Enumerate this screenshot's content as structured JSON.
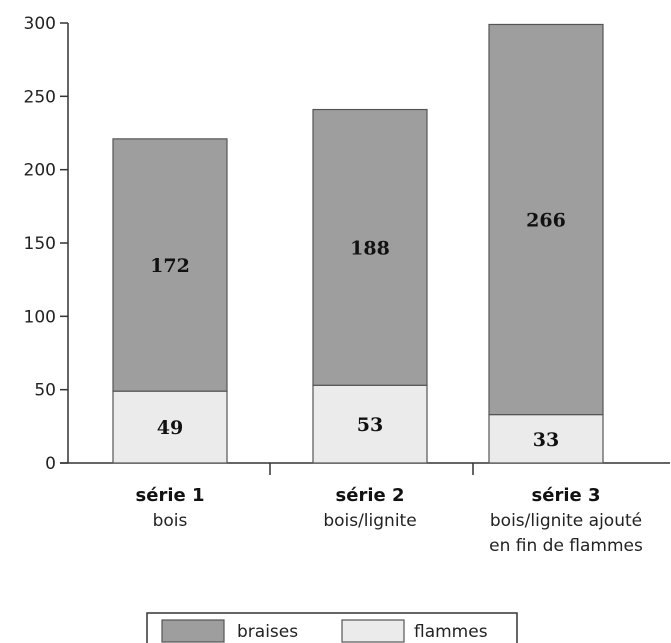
{
  "chart_data": {
    "type": "bar",
    "stacked": true,
    "categories": [
      {
        "lines": [
          "série 1",
          "bois"
        ]
      },
      {
        "lines": [
          "série 2",
          "bois/lignite"
        ]
      },
      {
        "lines": [
          "série 3",
          "bois/lignite ajouté",
          "en fin de flammes"
        ]
      }
    ],
    "series": [
      {
        "name": "flammes",
        "values": [
          49,
          53,
          33
        ],
        "color": "#ebebeb"
      },
      {
        "name": "braises",
        "values": [
          172,
          188,
          266
        ],
        "color": "#9e9e9e"
      }
    ],
    "ylim": [
      0,
      300
    ],
    "yticks": [
      0,
      50,
      100,
      150,
      200,
      250,
      300
    ],
    "grid": false,
    "legend_position": "bottom-center",
    "legend_order": [
      "braises",
      "flammes"
    ],
    "title": "",
    "xlabel": "",
    "ylabel": ""
  }
}
